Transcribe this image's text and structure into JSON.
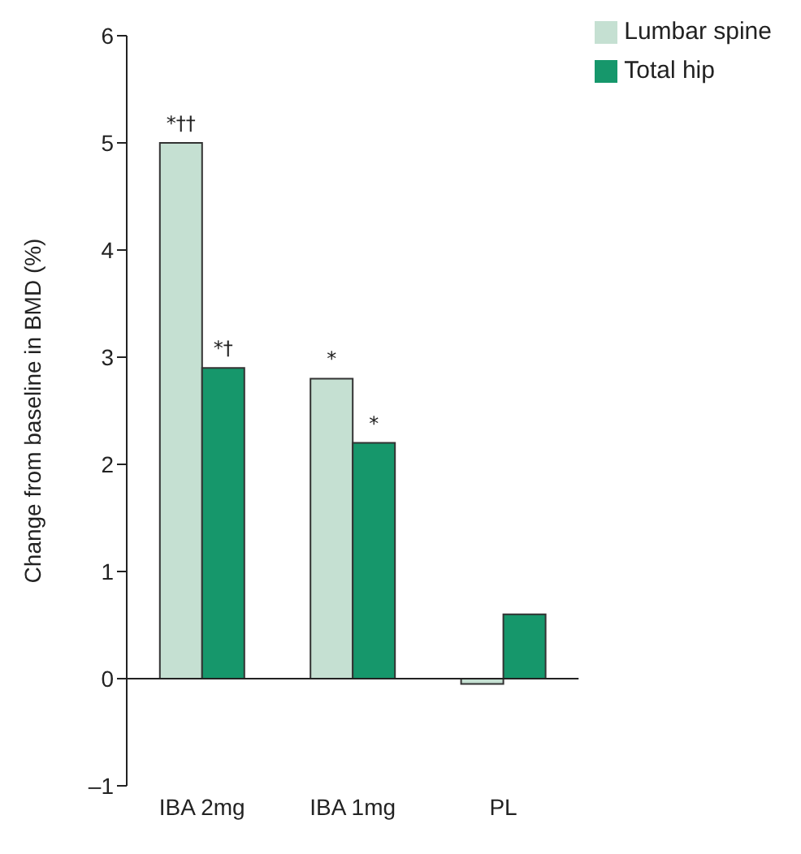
{
  "chart_data": {
    "type": "bar",
    "ylabel": "Change from baseline in BMD (%)",
    "categories": [
      "IBA 2mg",
      "IBA 1mg",
      "PL"
    ],
    "series": [
      {
        "name": "Lumbar spine",
        "color": "#c5e0d2",
        "values": [
          5.0,
          2.8,
          -0.05
        ]
      },
      {
        "name": "Total hip",
        "color": "#16976b",
        "values": [
          2.9,
          2.2,
          0.6
        ]
      }
    ],
    "ylim": [
      -1,
      6
    ],
    "yticks": [
      {
        "value": -1,
        "label": "–1"
      },
      0,
      1,
      2,
      3,
      4,
      5,
      6
    ],
    "ref_lines": [
      {
        "axis": "y",
        "value": 0
      }
    ],
    "annotations": [
      {
        "text": "*††",
        "x": "IBA 2mg",
        "y": 5.0
      },
      {
        "text": "*†",
        "x": "IBA 2mg",
        "y": 2.9
      },
      {
        "text": "*",
        "x": "IBA 1mg",
        "y": 2.8
      },
      {
        "text": "*",
        "x": "IBA 1mg",
        "y": 2.2
      }
    ],
    "grid": false,
    "legend": "top right"
  }
}
